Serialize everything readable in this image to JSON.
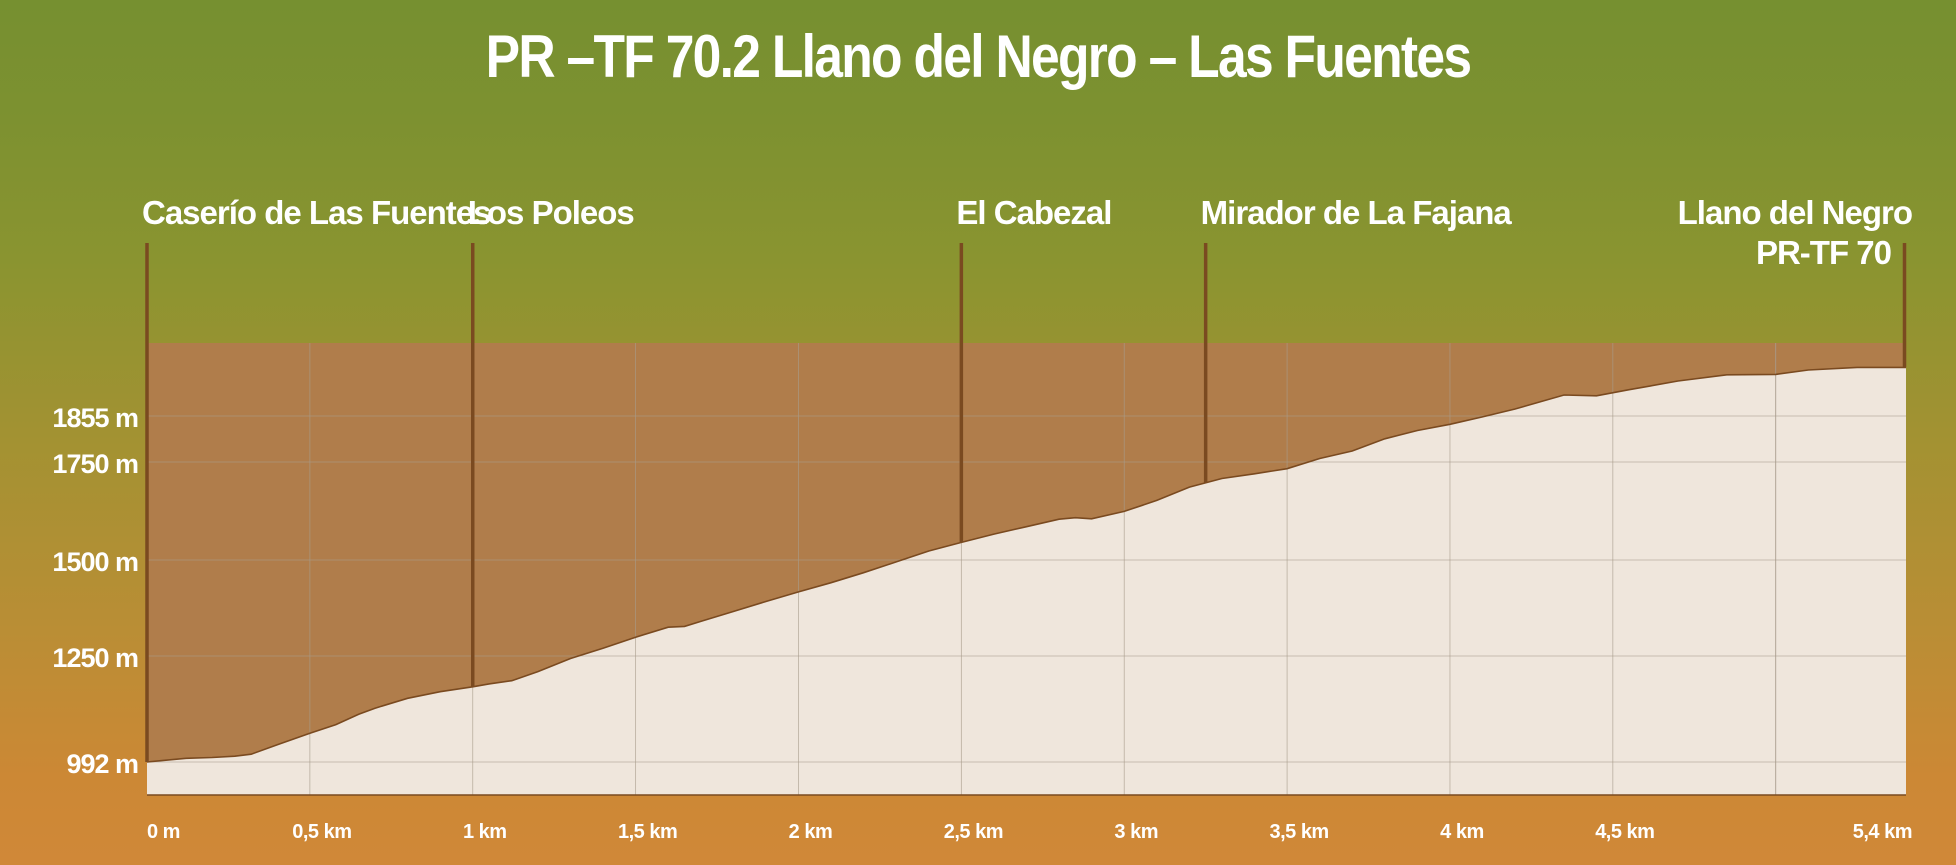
{
  "chart_data": {
    "type": "area",
    "title": "PR –TF 70.2 Llano del Negro – Las Fuentes",
    "xlabel": "",
    "ylabel": "",
    "x_unit": "km",
    "y_unit": "m",
    "xlim": [
      0,
      5.4
    ],
    "ylim": [
      900,
      2300
    ],
    "grid": true,
    "x_ticks": [
      {
        "value": 0,
        "label": "0 m"
      },
      {
        "value": 0.5,
        "label": "0,5 km"
      },
      {
        "value": 1,
        "label": "1 km"
      },
      {
        "value": 1.5,
        "label": "1,5 km"
      },
      {
        "value": 2,
        "label": "2 km"
      },
      {
        "value": 2.5,
        "label": "2,5 km"
      },
      {
        "value": 3,
        "label": "3 km"
      },
      {
        "value": 3.5,
        "label": "3,5 km"
      },
      {
        "value": 4,
        "label": "4 km"
      },
      {
        "value": 4.5,
        "label": "4,5 km"
      },
      {
        "value": 5.4,
        "label": "5,4 km"
      }
    ],
    "y_ticks": [
      {
        "value": 992,
        "label": "992 m"
      },
      {
        "value": 1250,
        "label": "1250 m"
      },
      {
        "value": 1500,
        "label": "1500 m"
      },
      {
        "value": 1750,
        "label": "1750 m"
      },
      {
        "value": 1855,
        "label": "1855 m"
      }
    ],
    "series": [
      {
        "x": [
          0,
          0.05,
          0.12,
          0.2,
          0.27,
          0.32,
          0.4,
          0.5,
          0.58,
          0.65,
          0.7,
          0.8,
          0.9,
          1.0,
          1.05,
          1.12,
          1.2,
          1.3,
          1.4,
          1.5,
          1.6,
          1.65,
          1.7,
          1.8,
          1.9,
          2.0,
          2.1,
          2.2,
          2.3,
          2.4,
          2.5,
          2.6,
          2.7,
          2.8,
          2.85,
          2.9,
          3.0,
          3.1,
          3.2,
          3.3,
          3.4,
          3.5,
          3.6,
          3.7,
          3.8,
          3.9,
          4.0,
          4.1,
          4.2,
          4.35,
          4.45,
          4.55,
          4.7,
          4.85,
          5.0,
          5.1,
          5.25,
          5.4
        ],
        "y": [
          992,
          996,
          1001,
          1003,
          1006,
          1011,
          1034,
          1062,
          1083,
          1108,
          1123,
          1147,
          1163,
          1175,
          1182,
          1190,
          1212,
          1244,
          1270,
          1299,
          1325,
          1327,
          1340,
          1366,
          1392,
          1417,
          1441,
          1467,
          1495,
          1523,
          1545,
          1566,
          1585,
          1604,
          1608,
          1605,
          1624,
          1652,
          1686,
          1708,
          1720,
          1733,
          1758,
          1775,
          1803,
          1822,
          1836,
          1853,
          1871,
          1903,
          1901,
          1915,
          1935,
          1949,
          1950,
          1960,
          1966,
          1966
        ]
      }
    ],
    "waypoints": [
      {
        "x": 0,
        "label": "Caserío de Las Fuentes"
      },
      {
        "x": 1.0,
        "label": "Los Poleos"
      },
      {
        "x": 2.5,
        "label": "El Cabezal"
      },
      {
        "x": 3.25,
        "label": "Mirador de La Fajana"
      },
      {
        "x": 5.4,
        "label": "Llano del Negro",
        "label2": "PR-TF 70"
      }
    ],
    "colors": {
      "background_top": "#769030",
      "background_bottom": "#d08838",
      "upper_area": "#b07d4b",
      "profile_fill": "#efe6dc",
      "profile_line": "#7a4a20",
      "grid": "#a89c8c",
      "marker": "#7a4a20",
      "text": "#ffffff"
    }
  }
}
